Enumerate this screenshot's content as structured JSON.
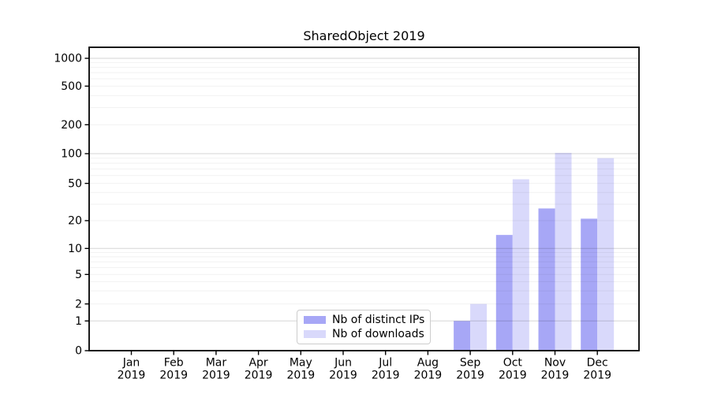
{
  "chart_data": {
    "type": "bar",
    "title": "SharedObject 2019",
    "yscale": "symlog",
    "grid": true,
    "legend_position": "lower center",
    "ylim": [
      0,
      1300
    ],
    "ytick_labels": [
      "0",
      "1",
      "2",
      "5",
      "10",
      "20",
      "50",
      "100",
      "200",
      "500",
      "1000"
    ],
    "x_ticks": [
      {
        "line1": "Jan",
        "line2": "2019"
      },
      {
        "line1": "Feb",
        "line2": "2019"
      },
      {
        "line1": "Mar",
        "line2": "2019"
      },
      {
        "line1": "Apr",
        "line2": "2019"
      },
      {
        "line1": "May",
        "line2": "2019"
      },
      {
        "line1": "Jun",
        "line2": "2019"
      },
      {
        "line1": "Jul",
        "line2": "2019"
      },
      {
        "line1": "Aug",
        "line2": "2019"
      },
      {
        "line1": "Sep",
        "line2": "2019"
      },
      {
        "line1": "Oct",
        "line2": "2019"
      },
      {
        "line1": "Nov",
        "line2": "2019"
      },
      {
        "line1": "Dec",
        "line2": "2019"
      }
    ],
    "series": [
      {
        "name": "Nb of distinct IPs",
        "color": "#a7a7f6",
        "values": [
          0,
          0,
          0,
          0,
          0,
          0,
          0,
          0,
          1,
          14,
          27,
          21
        ]
      },
      {
        "name": "Nb of downloads",
        "color": "#d9d9fb",
        "values": [
          0,
          0,
          0,
          0,
          0,
          0,
          0,
          0,
          2,
          55,
          102,
          90
        ]
      }
    ]
  },
  "colors": {
    "background": "#ffffff",
    "spine": "#000000",
    "tick": "#000000",
    "grid_major": "rgba(0,0,0,0.16)",
    "grid_minor": "rgba(0,0,0,0.055)"
  }
}
